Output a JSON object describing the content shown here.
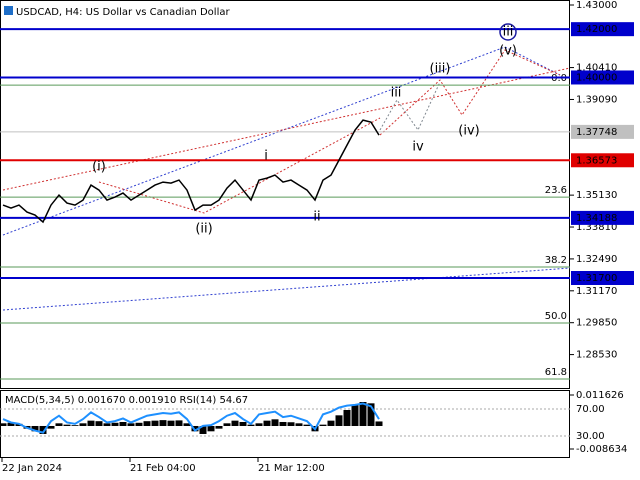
{
  "chart_data": [
    {
      "type": "line",
      "title": "USDCAD, H4:  US Dollar vs Canadian Dollar",
      "color": "#000000",
      "categories": [
        "22 Jan 2024",
        null,
        null,
        null,
        null,
        null,
        null,
        null,
        null,
        null,
        null,
        null,
        null,
        null,
        null,
        null,
        "21 Feb 04:00",
        null,
        null,
        null,
        null,
        null,
        null,
        null,
        null,
        null,
        null,
        null,
        null,
        null,
        null,
        null,
        "21 Mar 12:00",
        null,
        null,
        null,
        null,
        null,
        null,
        null,
        null,
        null,
        null,
        null,
        null,
        null,
        null,
        null
      ],
      "values": [
        1.34718,
        1.34594,
        1.34718,
        1.34429,
        1.34305,
        1.34015,
        1.34718,
        1.35132,
        1.34801,
        1.34718,
        1.34925,
        1.35546,
        1.35339,
        1.34925,
        1.35049,
        1.35215,
        1.34925,
        1.35132,
        1.35339,
        1.35546,
        1.3567,
        1.35628,
        1.35753,
        1.35339,
        1.34511,
        1.34718,
        1.34718,
        1.34925,
        1.35422,
        1.35753,
        1.35339,
        1.34925,
        1.35753,
        1.35835,
        1.35959,
        1.3567,
        1.35753,
        1.35546,
        1.35339,
        1.34925,
        1.35753,
        1.35959,
        1.3658,
        1.37201,
        1.37821,
        1.38235,
        1.38152,
        1.37614
      ],
      "ylim": [
        1.27147,
        1.43207
      ],
      "yticks": [
        {
          "value": 1.43,
          "label": "1.43000"
        },
        {
          "value": 1.4041,
          "label": "1.40410"
        },
        {
          "value": 1.3909,
          "label": "1.39090"
        },
        {
          "value": 1.3513,
          "label": "1.35130"
        },
        {
          "value": 1.3381,
          "label": "1.33810"
        },
        {
          "value": 1.3249,
          "label": "1.32490"
        },
        {
          "value": 1.3117,
          "label": "1.31170"
        },
        {
          "value": 1.2985,
          "label": "1.29850"
        },
        {
          "value": 1.2853,
          "label": "1.28530"
        }
      ],
      "levels": [
        {
          "value": 1.42,
          "label": "1.42000",
          "color": "#0000cc"
        },
        {
          "value": 1.4,
          "label": "1.40000",
          "color": "#0000cc"
        },
        {
          "value": 1.37748,
          "label": "1.37748",
          "color": "#c0c0c0"
        },
        {
          "value": 1.36573,
          "label": "1.36573",
          "color": "#e00000"
        },
        {
          "value": 1.34188,
          "label": "1.34188",
          "color": "#0000cc"
        },
        {
          "value": 1.317,
          "label": "1.31700",
          "color": "#0000cc"
        }
      ],
      "fib_levels": [
        {
          "value": 1.39683,
          "label": "0.0"
        },
        {
          "value": 1.35049,
          "label": "23.6"
        },
        {
          "value": 1.32153,
          "label": "38.2"
        },
        {
          "value": 1.29836,
          "label": "50.0"
        },
        {
          "value": 1.27519,
          "label": "61.8"
        }
      ],
      "fib_color": "#5a9a5a",
      "wave_labels": [
        {
          "text": "(i)",
          "color": "#cc0000"
        },
        {
          "text": "(ii)",
          "color": "#cc0000"
        },
        {
          "text": "(iii)",
          "color": "#cc0000"
        },
        {
          "text": "(iv)",
          "color": "#cc0000"
        },
        {
          "text": "(v)",
          "color": "#cc0000"
        },
        {
          "text": "i",
          "color": "#708090"
        },
        {
          "text": "ii",
          "color": "#708090"
        },
        {
          "text": "iii",
          "color": "#708090"
        },
        {
          "text": "iv",
          "color": "#708090"
        },
        {
          "text": "iii",
          "color": "#1a1aa0"
        }
      ]
    },
    {
      "type": "bar",
      "title": "MACD(5,34,5) 0.001670 0.001910 RSI(14) 54.67",
      "color": "#000000",
      "values": [
        0.001,
        0.0012,
        0.0008,
        -0.001,
        -0.002,
        -0.003,
        -0.001,
        0.001,
        0.0005,
        0.0003,
        0.001,
        0.002,
        0.0018,
        0.001,
        0.0012,
        0.0015,
        0.001,
        0.0012,
        0.0018,
        0.002,
        0.0022,
        0.002,
        0.0021,
        0.001,
        -0.002,
        -0.003,
        -0.002,
        -0.001,
        0.001,
        0.002,
        0.0015,
        0.0005,
        0.001,
        0.002,
        0.0025,
        0.0015,
        0.0014,
        0.001,
        0.0005,
        -0.002,
        0.0005,
        0.002,
        0.004,
        0.006,
        0.008,
        0.009,
        0.0085,
        0.0017
      ],
      "ylim": [
        -0.008634,
        0.011626
      ],
      "yticks": [
        {
          "value": 0.011626,
          "label": "0.011626"
        },
        {
          "value": -0.008634,
          "label": "-0.008634"
        }
      ],
      "series": [
        {
          "name": "RSI(14)",
          "color": "#1e90ff",
          "axis": "y2",
          "values": [
            55,
            50,
            48,
            42,
            38,
            35,
            52,
            60,
            50,
            48,
            55,
            65,
            58,
            50,
            52,
            56,
            50,
            55,
            60,
            62,
            64,
            63,
            65,
            55,
            38,
            45,
            46,
            52,
            60,
            64,
            55,
            48,
            62,
            64,
            66,
            58,
            60,
            56,
            52,
            40,
            62,
            66,
            72,
            75,
            76,
            78,
            74,
            55
          ]
        }
      ],
      "y2lim": [
        10.7,
        90.7
      ],
      "y2ticks": [
        {
          "value": 70,
          "label": "70.00"
        },
        {
          "value": 30,
          "label": "30.00"
        }
      ]
    }
  ]
}
